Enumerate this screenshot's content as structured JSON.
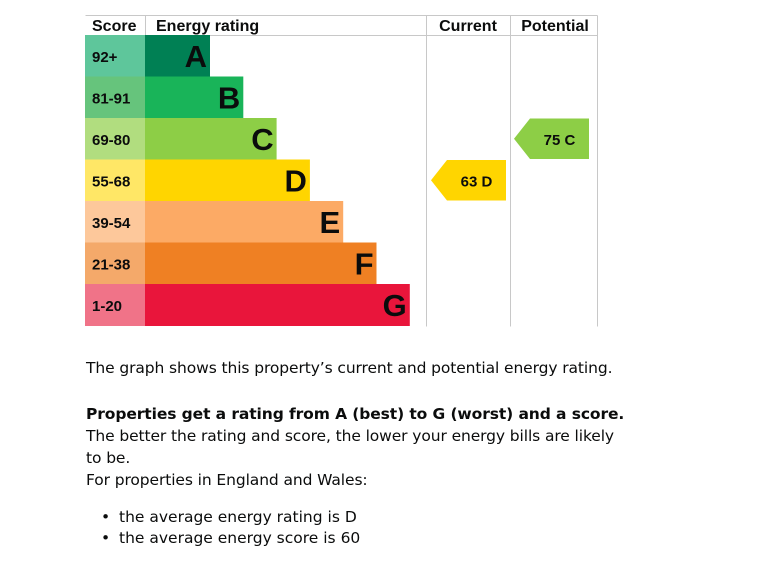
{
  "chart_data": {
    "type": "bar",
    "headers": {
      "score": "Score",
      "rating": "Energy rating",
      "current": "Current",
      "potential": "Potential"
    },
    "bands": [
      {
        "range": "92+",
        "letter": "A",
        "color": "#008054",
        "score_color": "#5ec69b"
      },
      {
        "range": "81-91",
        "letter": "B",
        "color": "#19b459",
        "score_color": "#66c47c"
      },
      {
        "range": "69-80",
        "letter": "C",
        "color": "#8dce46",
        "score_color": "#b1dd7f"
      },
      {
        "range": "55-68",
        "letter": "D",
        "color": "#ffd500",
        "score_color": "#ffe766"
      },
      {
        "range": "39-54",
        "letter": "E",
        "color": "#fcaa65",
        "score_color": "#fdc89b"
      },
      {
        "range": "21-38",
        "letter": "F",
        "color": "#ef8023",
        "score_color": "#f4a96a"
      },
      {
        "range": "1-20",
        "letter": "G",
        "color": "#e9153b",
        "score_color": "#f07388"
      }
    ],
    "current": {
      "score": 63,
      "band": "D",
      "label": "63 D",
      "color": "#ffd500"
    },
    "potential": {
      "score": 75,
      "band": "C",
      "label": "75 C",
      "color": "#8dce46"
    }
  },
  "text": {
    "intro": "The graph shows this property’s current and potential energy rating.",
    "rating_bold": "Properties get a rating from A (best) to G (worst) and a score.",
    "rating_rest": " The better the rating and score, the lower your energy bills are likely to be.",
    "region": "For properties in England and Wales:",
    "bullets": [
      "the average energy rating is D",
      "the average energy score is 60"
    ]
  }
}
